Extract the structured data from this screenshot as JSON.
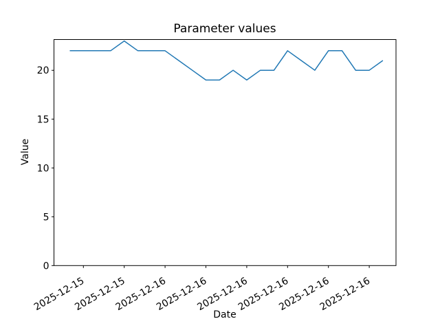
{
  "figure": {
    "background": "#ffffff",
    "text_color": "#000000"
  },
  "chart_data": {
    "type": "line",
    "title": "Parameter values",
    "xlabel": "Date",
    "ylabel": "Value",
    "grid": false,
    "legend": "none",
    "ylim": [
      0,
      23.15
    ],
    "y_ticks": [
      0,
      5,
      10,
      15,
      20
    ],
    "x_tick_labels": [
      "2025-12-15",
      "2025-12-15",
      "2025-12-16",
      "2025-12-16",
      "2025-12-16",
      "2025-12-16",
      "2025-12-16",
      "2025-12-16"
    ],
    "x_tick_point_indices": [
      1,
      4,
      7,
      10,
      13,
      16,
      19,
      22
    ],
    "x_tick_rotation_deg": 30,
    "series": [
      {
        "name": "parameter-values",
        "color": "#1f77b4",
        "values": [
          22,
          22,
          22,
          22,
          23,
          22,
          22,
          22,
          21,
          20,
          19,
          19,
          20,
          19,
          20,
          20,
          22,
          21,
          20,
          22,
          22,
          20,
          20,
          21
        ]
      }
    ]
  }
}
